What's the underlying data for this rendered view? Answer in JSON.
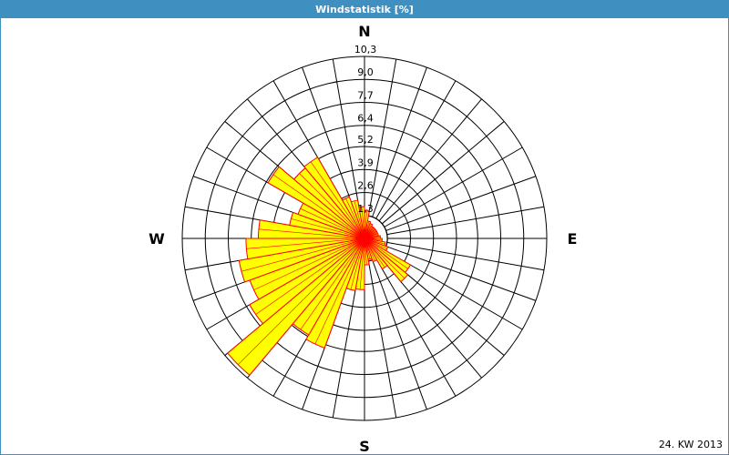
{
  "chart_data": {
    "type": "windrose",
    "title": "Windstatistik [%]",
    "directions": [
      "N",
      "E",
      "S",
      "W"
    ],
    "values": [
      1.6,
      1.0,
      0.9,
      0.8,
      0.8,
      0.8,
      0.8,
      0.8,
      0.9,
      1.0,
      1.2,
      1.4,
      3.0,
      3.2,
      2.0,
      1.4,
      1.2,
      1.5,
      2.9,
      3.0,
      6.6,
      6.3,
      10.1,
      7.5,
      6.9,
      7.2,
      6.7,
      6.0,
      4.3,
      4.0,
      6.3,
      5.2,
      5.3,
      2.5,
      2.2,
      1.8
    ],
    "color": "#ffff00",
    "edge_color": "#ff0000",
    "rlim": [
      0,
      10.3
    ],
    "rticks": [
      {
        "value": 1.3,
        "label": "1,3"
      },
      {
        "value": 2.6,
        "label": "2,6"
      },
      {
        "value": 3.9,
        "label": "3,9"
      },
      {
        "value": 5.2,
        "label": "5,2"
      },
      {
        "value": 6.4,
        "label": "6,4"
      },
      {
        "value": 7.7,
        "label": "7,7"
      },
      {
        "value": 9.0,
        "label": "9,0"
      },
      {
        "value": 10.3,
        "label": "10,3"
      }
    ],
    "annotation": "24. KW 2013"
  }
}
